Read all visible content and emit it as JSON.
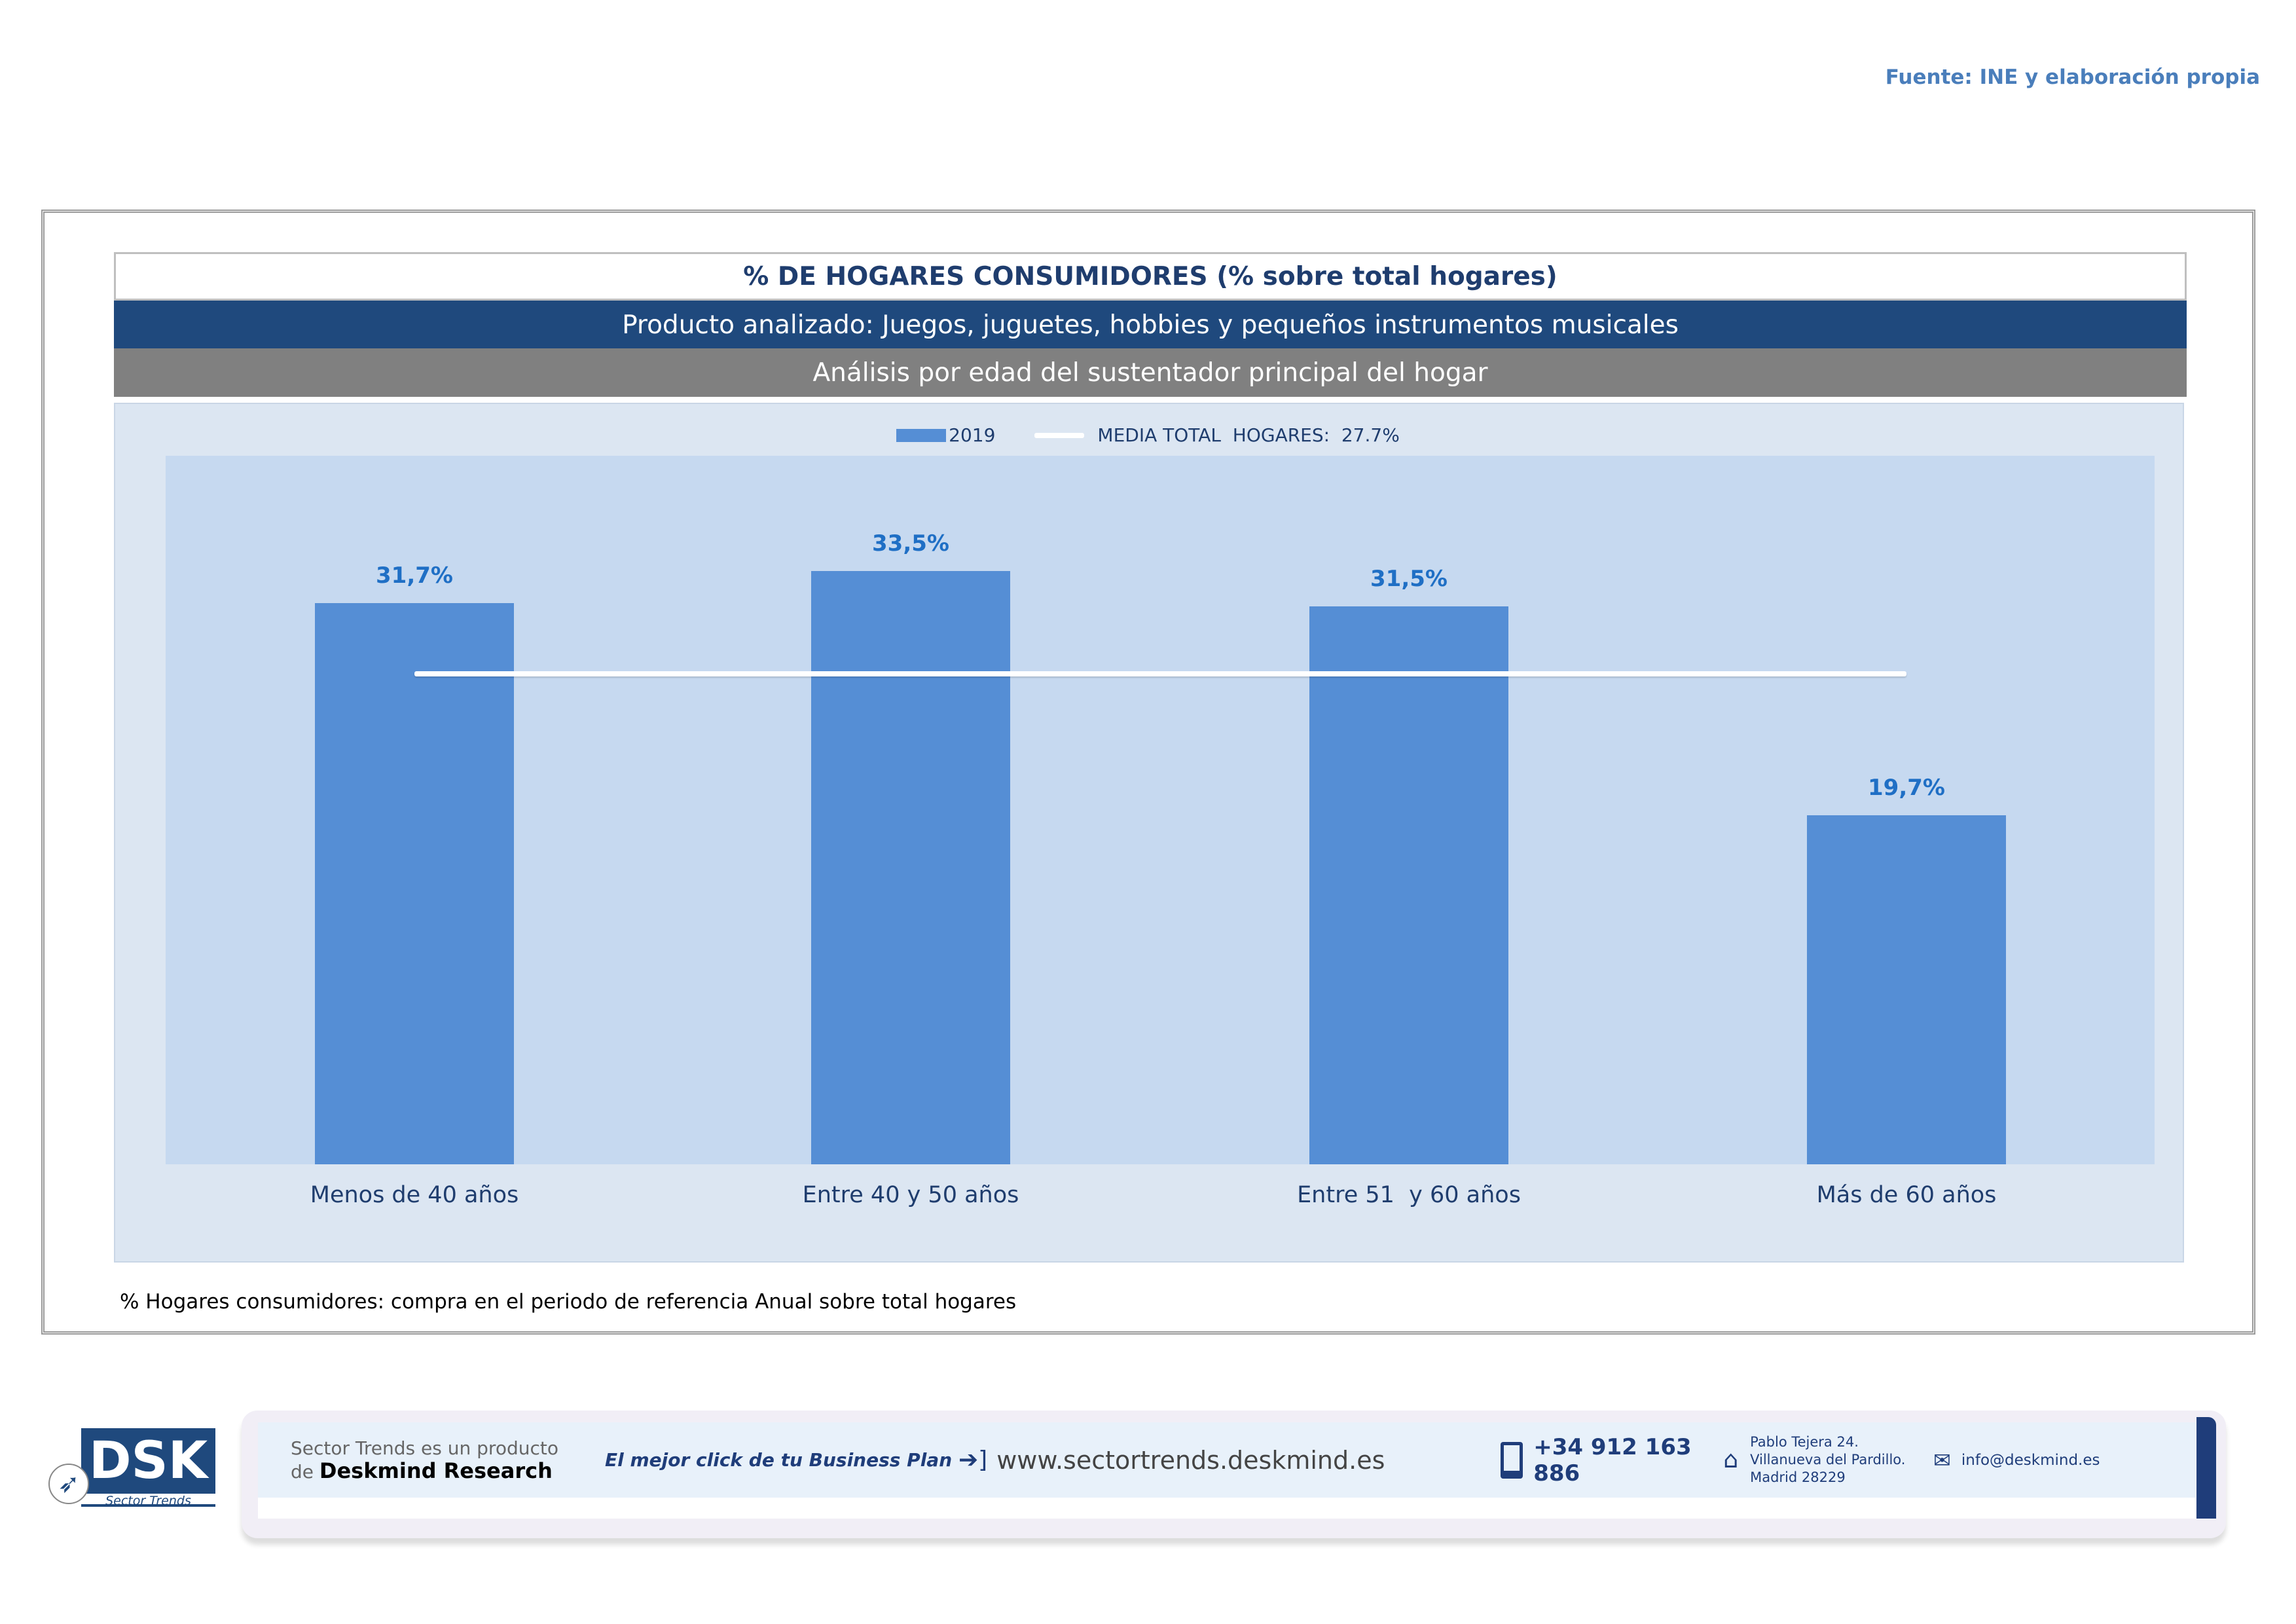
{
  "source": "Fuente: INE y elaboración propia",
  "header": {
    "title": "% DE HOGARES CONSUMIDORES (% sobre total hogares)",
    "product": "Producto analizado: Juegos, juguetes, hobbies y pequeños instrumentos musicales",
    "analysis": "Análisis por edad del sustentador principal del hogar"
  },
  "chart_data": {
    "type": "bar",
    "categories": [
      "Menos de 40 años",
      "Entre 40 y 50 años",
      "Entre 51  y 60 años",
      "Más de 60 años"
    ],
    "series": [
      {
        "name": "2019",
        "values": [
          31.7,
          33.5,
          31.5,
          19.7
        ],
        "labels": [
          "31,7%",
          "33,5%",
          "31,5%",
          "19,7%"
        ],
        "color": "#558ed5"
      }
    ],
    "reference_line": {
      "name": "MEDIA TOTAL  HOGARES:  27.7%",
      "value": 27.7,
      "color": "#ffffff"
    },
    "ylim": [
      0,
      40
    ],
    "grid": false,
    "legend": "top-center",
    "xlabel": "",
    "ylabel": ""
  },
  "note": "% Hogares consumidores: compra en el periodo de referencia Anual sobre total hogares",
  "footer": {
    "logo": "DSK Sector Trends",
    "tag1": "Sector Trends es un producto",
    "tag2a": "de",
    "tag2b": "Deskmind Research",
    "slogan": "El mejor click de tu Business Plan",
    "web": "www.sectortrends.deskmind.es",
    "phone": "+34 912 163 886",
    "addr1": "Pablo Tejera 24.",
    "addr2": "Villanueva del Pardillo.",
    "addr3": "Madrid 28229",
    "email": "info@deskmind.es"
  }
}
